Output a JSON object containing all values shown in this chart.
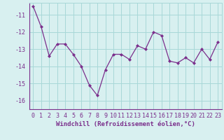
{
  "x": [
    0,
    1,
    2,
    3,
    4,
    5,
    6,
    7,
    8,
    9,
    10,
    11,
    12,
    13,
    14,
    15,
    16,
    17,
    18,
    19,
    20,
    21,
    22,
    23
  ],
  "y": [
    -10.5,
    -11.7,
    -13.4,
    -12.7,
    -12.7,
    -13.3,
    -14.0,
    -15.1,
    -15.7,
    -14.2,
    -13.3,
    -13.3,
    -13.6,
    -12.8,
    -13.0,
    -12.0,
    -12.2,
    -13.7,
    -13.8,
    -13.5,
    -13.8,
    -13.0,
    -13.6,
    -12.6
  ],
  "line_color": "#7b2f8c",
  "marker": "D",
  "marker_size": 2,
  "bg_color": "#d8f0f0",
  "grid_color": "#a8d8d8",
  "xlabel": "Windchill (Refroidissement éolien,°C)",
  "xlabel_fontsize": 6.5,
  "tick_fontsize": 6.0,
  "ylim": [
    -16.5,
    -10.3
  ],
  "yticks": [
    -16,
    -15,
    -14,
    -13,
    -12,
    -11
  ],
  "xticks": [
    0,
    1,
    2,
    3,
    4,
    5,
    6,
    7,
    8,
    9,
    10,
    11,
    12,
    13,
    14,
    15,
    16,
    17,
    18,
    19,
    20,
    21,
    22,
    23
  ]
}
